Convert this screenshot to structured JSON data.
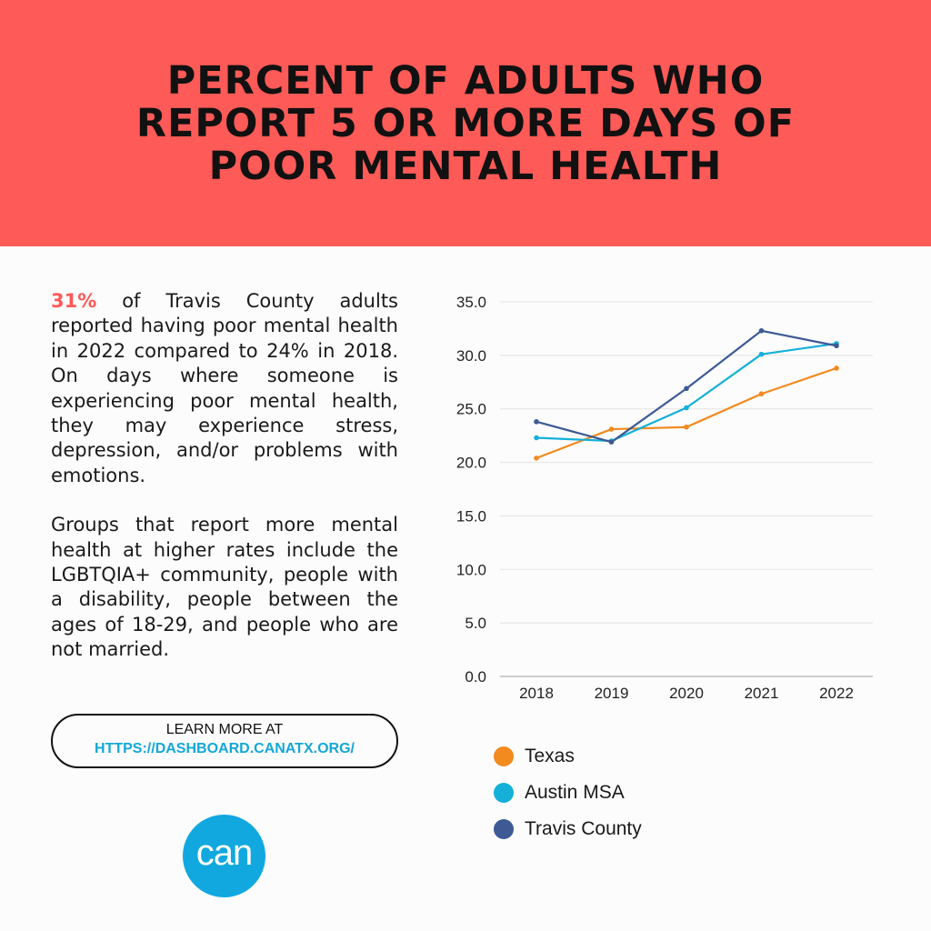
{
  "banner": {
    "title": "Percent of adults who report 5 or more days of poor mental health"
  },
  "text": {
    "highlight": "31%",
    "paragraph1_rest": " of Travis County adults reported having poor mental health in 2022 compared to 24% in 2018. On days where someone is experiencing poor mental health, they may experience stress, depression, and/or problems with emotions.",
    "paragraph2": "Groups that report more mental health at higher rates include the LGBTQIA+ community, people with a disability, people between the ages of 18-29, and people who are not married."
  },
  "learn_more": {
    "label": "LEARN MORE AT",
    "url": "HTTPS://DASHBOARD.CANATX.ORG/"
  },
  "logo": {
    "text": "can"
  },
  "colors": {
    "banner": "#fe5a57",
    "accent": "#fe5a57",
    "link": "#14a7d8",
    "logo": "#11a8df"
  },
  "chart_data": {
    "type": "line",
    "categories": [
      "2018",
      "2019",
      "2020",
      "2021",
      "2022"
    ],
    "ylim": [
      0,
      35
    ],
    "yticks": [
      "0.0",
      "5.0",
      "10.0",
      "15.0",
      "20.0",
      "25.0",
      "30.0",
      "35.0"
    ],
    "grid": true,
    "legend_position": "bottom",
    "series": [
      {
        "name": "Texas",
        "color": "#f28a1f",
        "values": [
          20.4,
          23.1,
          23.3,
          26.4,
          28.8
        ]
      },
      {
        "name": "Austin MSA",
        "color": "#14b0d9",
        "values": [
          22.3,
          22.0,
          25.1,
          30.1,
          31.1
        ]
      },
      {
        "name": "Travis County",
        "color": "#3d5a94",
        "values": [
          23.8,
          21.9,
          26.9,
          32.3,
          30.9
        ]
      }
    ]
  }
}
